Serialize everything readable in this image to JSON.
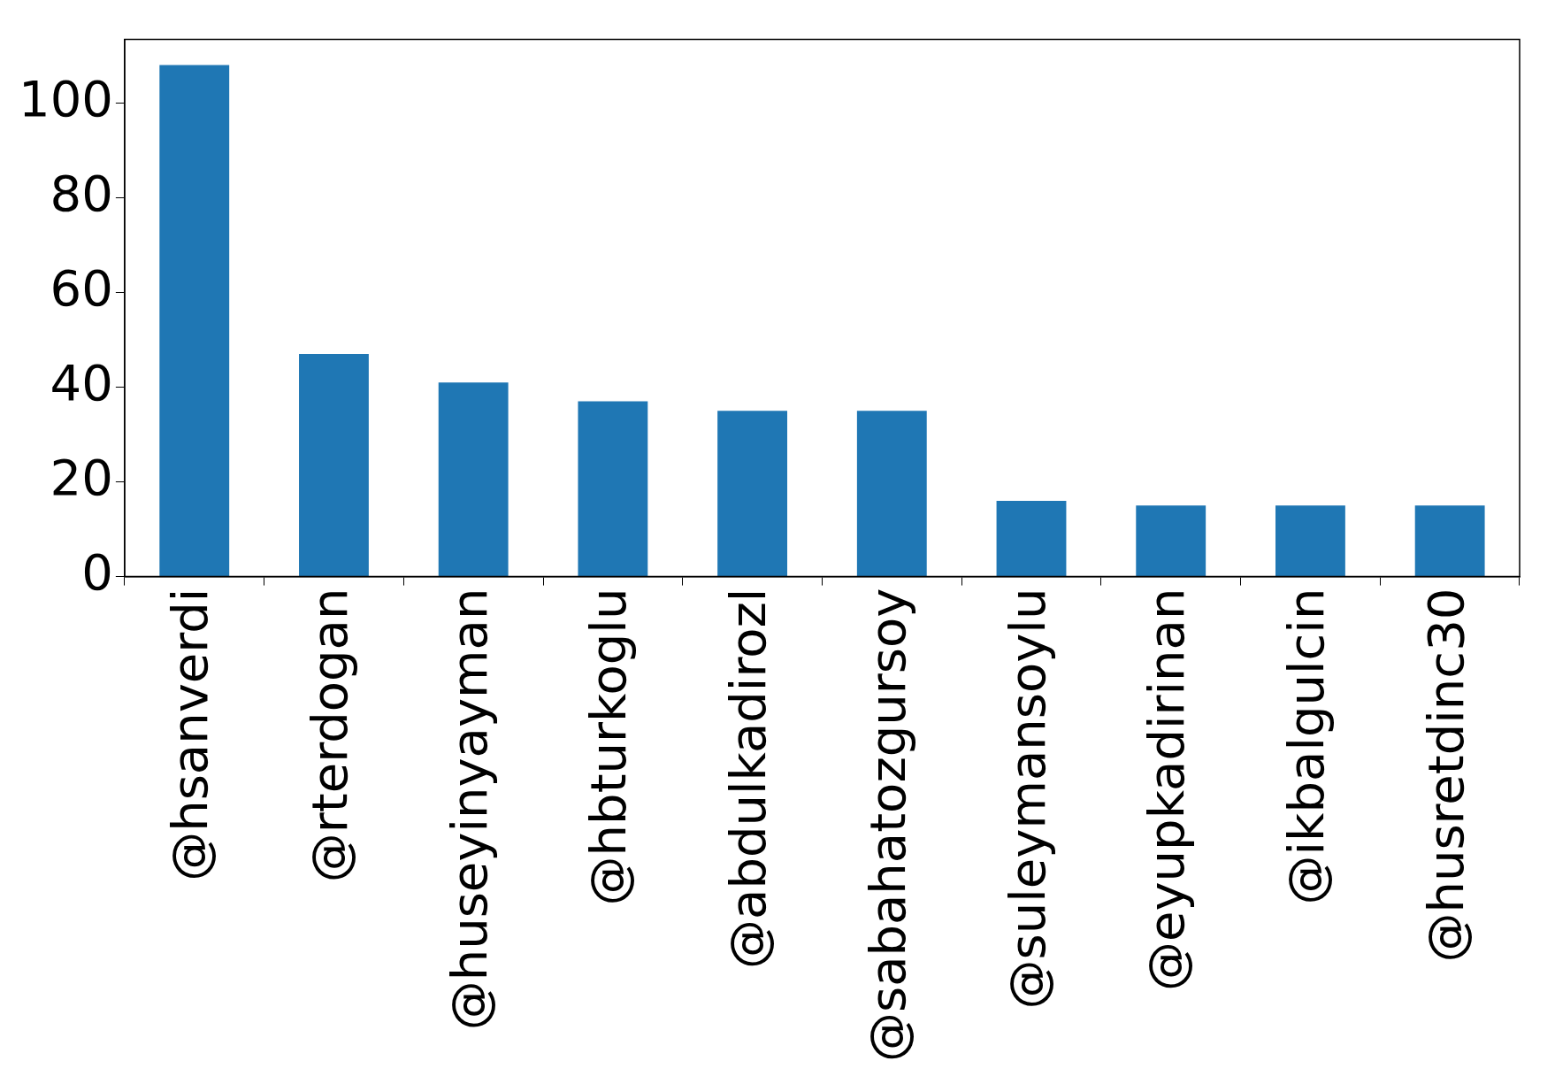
{
  "chart_data": {
    "type": "bar",
    "categories": [
      "@hsanverdi",
      "@rterdogan",
      "@huseyinyayman",
      "@hbturkoglu",
      "@abdulkadirozl",
      "@sabahatozgursoy",
      "@suleymansoylu",
      "@eyupkadirinan",
      "@ikbalgulcin",
      "@husretdinc30"
    ],
    "values": [
      108,
      47,
      41,
      37,
      35,
      35,
      16,
      15,
      15,
      15
    ],
    "color": "#1f77b4",
    "ylim": [
      0,
      113.4
    ],
    "yticks": [
      0,
      20,
      40,
      60,
      80,
      100
    ],
    "grid": false,
    "legend": false
  }
}
